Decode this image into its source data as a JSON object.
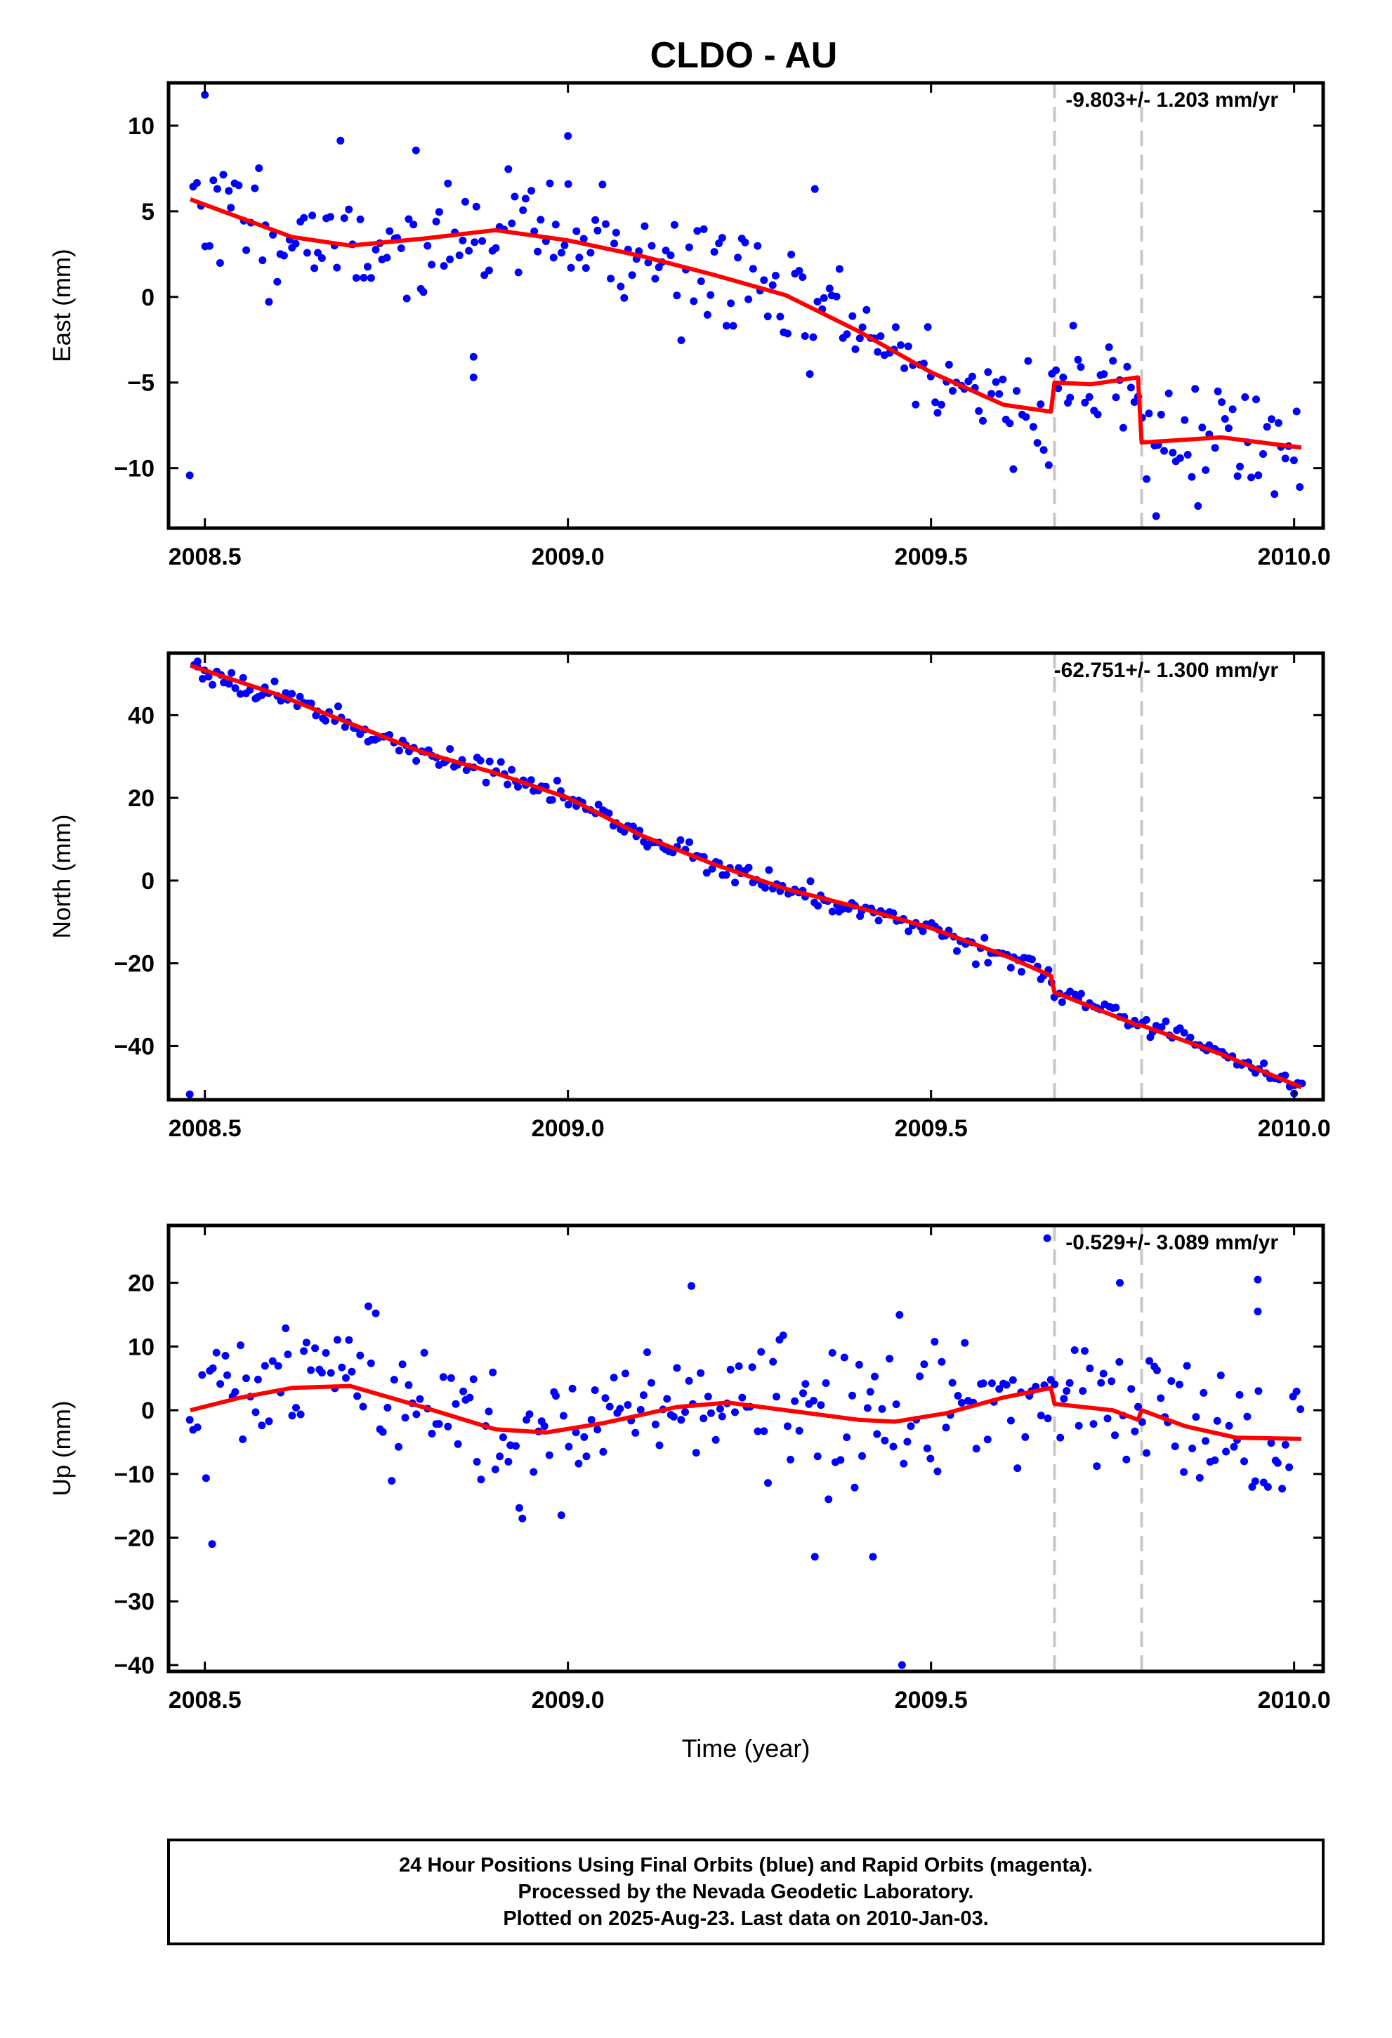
{
  "title": "CLDO - AU",
  "colors": {
    "points": "#0000ff",
    "model": "#ff0000",
    "offset_lines": "#c8c8c8",
    "frame": "#000000"
  },
  "x_axis": {
    "label": "Time (year)",
    "range": [
      2008.45,
      2010.04
    ],
    "ticks": [
      2008.5,
      2009.0,
      2009.5,
      2010.0
    ],
    "tick_labels": [
      "2008.5",
      "2009.0",
      "2009.5",
      "2010.0"
    ]
  },
  "offset_epochs": [
    2009.67,
    2009.79
  ],
  "footer": {
    "line1": "24 Hour Positions Using Final Orbits (blue) and Rapid Orbits (magenta).",
    "line2": "Processed by the Nevada Geodetic Laboratory.",
    "line3": "Plotted on 2025-Aug-23. Last data on 2010-Jan-03."
  },
  "chart_data": [
    {
      "type": "scatter",
      "component": "east",
      "ylabel": "East (mm)",
      "ylim": [
        -13.5,
        12.5
      ],
      "yticks": [
        -10,
        -5,
        0,
        5,
        10
      ],
      "ytick_labels": [
        "−10",
        "−5",
        "0",
        "5",
        "10"
      ],
      "rate_label": "-9.803+/- 1.203 mm/yr",
      "x_range": [
        2008.48,
        2010.01
      ],
      "noise_sd": 1.7,
      "seed": 11,
      "outliers": [
        [
          2008.5,
          11.8
        ],
        [
          2008.87,
          -4.7
        ],
        [
          2008.87,
          -3.5
        ],
        [
          2009.0,
          9.4
        ],
        [
          2009.34,
          6.3
        ],
        [
          2009.81,
          -12.8
        ]
      ],
      "model": [
        [
          2008.48,
          5.7
        ],
        [
          2008.55,
          4.6
        ],
        [
          2008.62,
          3.5
        ],
        [
          2008.7,
          3.0
        ],
        [
          2008.8,
          3.4
        ],
        [
          2008.9,
          3.9
        ],
        [
          2009.0,
          3.3
        ],
        [
          2009.1,
          2.4
        ],
        [
          2009.2,
          1.3
        ],
        [
          2009.3,
          0.1
        ],
        [
          2009.4,
          -2.0
        ],
        [
          2009.5,
          -4.4
        ],
        [
          2009.6,
          -6.3
        ],
        [
          2009.665,
          -6.7
        ],
        [
          2009.67,
          -5.0
        ],
        [
          2009.72,
          -5.1
        ],
        [
          2009.785,
          -4.7
        ],
        [
          2009.79,
          -8.5
        ],
        [
          2009.9,
          -8.2
        ],
        [
          2010.01,
          -8.8
        ]
      ]
    },
    {
      "type": "scatter",
      "component": "north",
      "ylabel": "North (mm)",
      "ylim": [
        -53,
        55
      ],
      "yticks": [
        -40,
        -20,
        0,
        20,
        40
      ],
      "ytick_labels": [
        "−40",
        "−20",
        "0",
        "20",
        "40"
      ],
      "rate_label": "-62.751+/- 1.300 mm/yr",
      "x_range": [
        2008.48,
        2010.01
      ],
      "noise_sd": 1.3,
      "seed": 23,
      "outliers": [
        [
          2008.49,
          53.0
        ],
        [
          2010.0,
          -51.5
        ]
      ],
      "model": [
        [
          2008.48,
          52.0
        ],
        [
          2008.6,
          45.0
        ],
        [
          2008.7,
          38.0
        ],
        [
          2008.8,
          31.0
        ],
        [
          2008.9,
          26.0
        ],
        [
          2009.0,
          20.0
        ],
        [
          2009.1,
          11.0
        ],
        [
          2009.2,
          4.0
        ],
        [
          2009.3,
          -2.0
        ],
        [
          2009.4,
          -6.5
        ],
        [
          2009.5,
          -11.5
        ],
        [
          2009.6,
          -18.0
        ],
        [
          2009.665,
          -23.0
        ],
        [
          2009.67,
          -27.0
        ],
        [
          2009.785,
          -35.0
        ],
        [
          2009.79,
          -35.0
        ],
        [
          2009.9,
          -42.0
        ],
        [
          2010.01,
          -50.0
        ]
      ]
    },
    {
      "type": "scatter",
      "component": "up",
      "ylabel": "Up (mm)",
      "xlabel": "Time (year)",
      "ylim": [
        -41,
        29
      ],
      "yticks": [
        -40,
        -30,
        -20,
        -10,
        0,
        10,
        20
      ],
      "ytick_labels": [
        "−40",
        "−30",
        "−20",
        "−10",
        "0",
        "10",
        "20"
      ],
      "rate_label": "-0.529+/- 3.089 mm/yr",
      "x_range": [
        2008.48,
        2010.01
      ],
      "noise_sd": 5.5,
      "seed": 37,
      "outliers": [
        [
          2008.51,
          -21.0
        ],
        [
          2009.46,
          -40.0
        ],
        [
          2009.34,
          -23.0
        ],
        [
          2009.42,
          -23.0
        ],
        [
          2009.66,
          27.0
        ],
        [
          2009.76,
          20.0
        ],
        [
          2009.95,
          20.5
        ],
        [
          2009.17,
          19.5
        ],
        [
          2009.95,
          15.5
        ]
      ],
      "model": [
        [
          2008.48,
          0.0
        ],
        [
          2008.55,
          2.0
        ],
        [
          2008.62,
          3.5
        ],
        [
          2008.7,
          3.8
        ],
        [
          2008.8,
          0.5
        ],
        [
          2008.9,
          -3.0
        ],
        [
          2008.97,
          -3.5
        ],
        [
          2009.05,
          -2.0
        ],
        [
          2009.15,
          0.5
        ],
        [
          2009.22,
          1.2
        ],
        [
          2009.3,
          0.0
        ],
        [
          2009.4,
          -1.5
        ],
        [
          2009.45,
          -1.8
        ],
        [
          2009.52,
          -0.5
        ],
        [
          2009.6,
          2.0
        ],
        [
          2009.665,
          3.5
        ],
        [
          2009.67,
          1.0
        ],
        [
          2009.75,
          0.0
        ],
        [
          2009.785,
          -1.5
        ],
        [
          2009.79,
          0.0
        ],
        [
          2009.85,
          -2.5
        ],
        [
          2009.92,
          -4.3
        ],
        [
          2010.01,
          -4.5
        ]
      ]
    }
  ]
}
